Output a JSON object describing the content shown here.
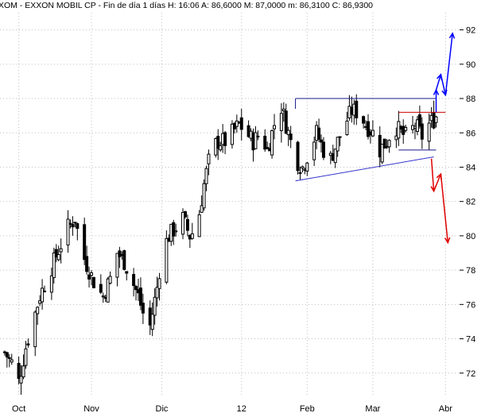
{
  "header": {
    "text": "XOM - EXXON MOBIL CP - Fin de día 1 días  H: 16:06  A: 86,6000  M: 87,0000  m: 86,3100  C: 86,9300"
  },
  "colors": {
    "candle": "#000000",
    "grid": "#c0c0c0",
    "resistance_line": "#1a1a8c",
    "support_line": "#3333cc",
    "bullish_arrow": "#0000ff",
    "bearish_arrow": "#e00000",
    "red_level": "#cc0000"
  },
  "chart_data": {
    "type": "candlestick",
    "symbol": "XOM",
    "name": "EXXON MOBIL CP",
    "interval": "Fin de día 1 días",
    "last_bar": {
      "time": "16:06",
      "open": 86.6,
      "high": 87.0,
      "low": 86.31,
      "close": 86.93
    },
    "y_ticks": [
      "72",
      "74",
      "76",
      "78",
      "80",
      "82",
      "84",
      "86",
      "88",
      "90",
      "92"
    ],
    "ylim": [
      70.6,
      93.0
    ],
    "x_tick_labels": [
      "Oct",
      "Nov",
      "Dic",
      "12",
      "Feb",
      "Mar",
      "Abr"
    ],
    "x_tick_days": [
      0,
      31,
      61,
      95,
      123,
      151,
      182
    ],
    "xlim": [
      -8,
      188
    ],
    "grid": "dotted",
    "closes": [
      {
        "day": -6,
        "close": 73.2
      },
      {
        "day": -3,
        "close": 72.6
      },
      {
        "day": 0,
        "close": 71.5
      },
      {
        "day": 3,
        "close": 73.5
      },
      {
        "day": 6,
        "close": 75.0
      },
      {
        "day": 9,
        "close": 76.5
      },
      {
        "day": 12,
        "close": 77.5
      },
      {
        "day": 15,
        "close": 78.5
      },
      {
        "day": 18,
        "close": 79.5
      },
      {
        "day": 21,
        "close": 80.5
      },
      {
        "day": 24,
        "close": 81.0
      },
      {
        "day": 27,
        "close": 79.0
      },
      {
        "day": 30,
        "close": 78.0
      },
      {
        "day": 33,
        "close": 77.0
      },
      {
        "day": 36,
        "close": 76.5
      },
      {
        "day": 39,
        "close": 77.5
      },
      {
        "day": 42,
        "close": 79.0
      },
      {
        "day": 45,
        "close": 78.5
      },
      {
        "day": 48,
        "close": 77.5
      },
      {
        "day": 51,
        "close": 76.5
      },
      {
        "day": 53,
        "close": 75.5
      },
      {
        "day": 55,
        "close": 74.0
      },
      {
        "day": 57,
        "close": 75.5
      },
      {
        "day": 59,
        "close": 77.0
      },
      {
        "day": 61,
        "close": 79.0
      },
      {
        "day": 64,
        "close": 80.0
      },
      {
        "day": 67,
        "close": 80.5
      },
      {
        "day": 70,
        "close": 81.0
      },
      {
        "day": 73,
        "close": 80.0
      },
      {
        "day": 76,
        "close": 80.5
      },
      {
        "day": 79,
        "close": 83.0
      },
      {
        "day": 82,
        "close": 85.0
      },
      {
        "day": 85,
        "close": 85.5
      },
      {
        "day": 88,
        "close": 85.5
      },
      {
        "day": 91,
        "close": 86.0
      },
      {
        "day": 94,
        "close": 86.5
      },
      {
        "day": 97,
        "close": 86.0
      },
      {
        "day": 100,
        "close": 85.5
      },
      {
        "day": 103,
        "close": 86.0
      },
      {
        "day": 106,
        "close": 85.0
      },
      {
        "day": 109,
        "close": 86.5
      },
      {
        "day": 112,
        "close": 87.5
      },
      {
        "day": 115,
        "close": 86.0
      },
      {
        "day": 118,
        "close": 84.5
      },
      {
        "day": 121,
        "close": 84.0
      },
      {
        "day": 124,
        "close": 85.0
      },
      {
        "day": 127,
        "close": 86.0
      },
      {
        "day": 130,
        "close": 85.0
      },
      {
        "day": 133,
        "close": 84.5
      },
      {
        "day": 136,
        "close": 85.5
      },
      {
        "day": 139,
        "close": 86.5
      },
      {
        "day": 142,
        "close": 87.3
      },
      {
        "day": 145,
        "close": 87.2
      },
      {
        "day": 148,
        "close": 86.5
      },
      {
        "day": 151,
        "close": 86.0
      },
      {
        "day": 154,
        "close": 85.0
      },
      {
        "day": 157,
        "close": 85.5
      },
      {
        "day": 160,
        "close": 86.5
      },
      {
        "day": 163,
        "close": 86.0
      },
      {
        "day": 166,
        "close": 85.7
      },
      {
        "day": 169,
        "close": 86.5
      },
      {
        "day": 172,
        "close": 85.8
      },
      {
        "day": 175,
        "close": 86.5
      },
      {
        "day": 178,
        "close": 86.93
      }
    ],
    "annotations": {
      "resistance_line": {
        "y": 88.0,
        "x": [
          118,
          178
        ]
      },
      "support_line": {
        "points": [
          {
            "day": 118,
            "y": 83.2
          },
          {
            "day": 177,
            "y": 84.6
          }
        ]
      },
      "red_level": {
        "y": 87.2,
        "x": [
          162,
          182
        ]
      },
      "blue_level": {
        "y": 85.0,
        "x": [
          162,
          178
        ]
      },
      "bullish_arrows": [
        [
          178,
          87.2
        ],
        [
          178,
          88.5
        ],
        [
          180,
          89.4
        ],
        [
          182,
          88.2
        ],
        [
          185,
          91.8
        ]
      ],
      "bearish_arrows": [
        [
          176,
          84.5
        ],
        [
          177,
          82.6
        ],
        [
          180,
          83.6
        ],
        [
          183,
          79.6
        ]
      ]
    }
  }
}
